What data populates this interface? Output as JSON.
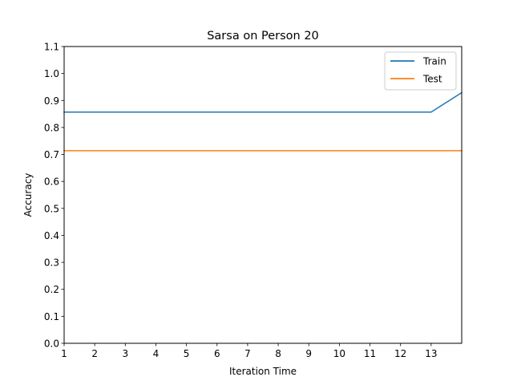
{
  "chart_data": {
    "type": "line",
    "title": "Sarsa on Person 20",
    "xlabel": "Iteration Time",
    "ylabel": "Accuracy",
    "xlim": [
      1,
      14
    ],
    "ylim": [
      0.0,
      1.1
    ],
    "xticks": [
      1,
      2,
      3,
      4,
      5,
      6,
      7,
      8,
      9,
      10,
      11,
      12,
      13
    ],
    "yticks": [
      "0.0",
      "0.1",
      "0.2",
      "0.3",
      "0.4",
      "0.5",
      "0.6",
      "0.7",
      "0.8",
      "0.9",
      "1.0",
      "1.1"
    ],
    "grid": false,
    "legend_position": "top-right",
    "series": [
      {
        "name": "Train",
        "color": "#1f77b4",
        "x": [
          1,
          2,
          3,
          4,
          5,
          6,
          7,
          8,
          9,
          10,
          11,
          12,
          13,
          14
        ],
        "y": [
          0.857,
          0.857,
          0.857,
          0.857,
          0.857,
          0.857,
          0.857,
          0.857,
          0.857,
          0.857,
          0.857,
          0.857,
          0.857,
          0.929
        ]
      },
      {
        "name": "Test",
        "color": "#ff7f0e",
        "x": [
          1,
          2,
          3,
          4,
          5,
          6,
          7,
          8,
          9,
          10,
          11,
          12,
          13,
          14
        ],
        "y": [
          0.714,
          0.714,
          0.714,
          0.714,
          0.714,
          0.714,
          0.714,
          0.714,
          0.714,
          0.714,
          0.714,
          0.714,
          0.714,
          0.714
        ]
      }
    ]
  }
}
